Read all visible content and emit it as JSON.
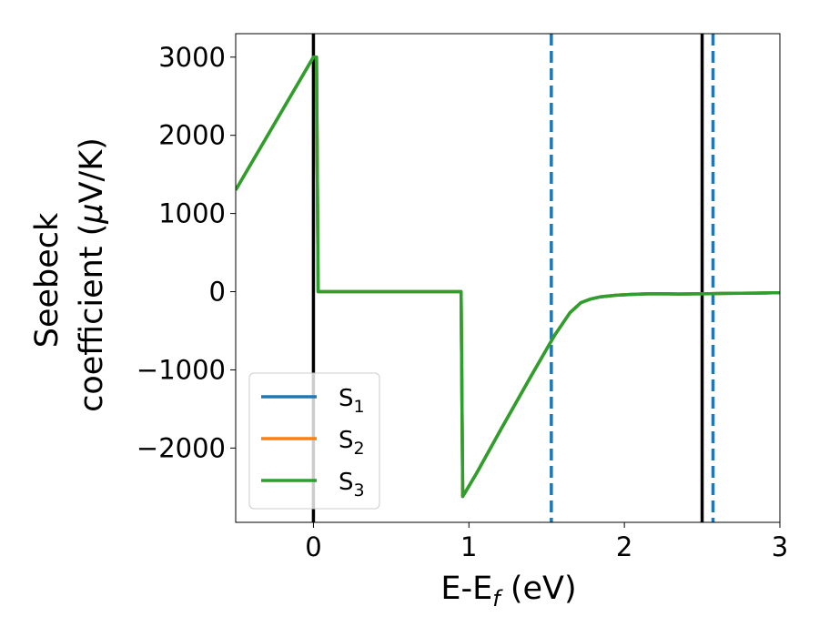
{
  "chart_data": {
    "type": "line",
    "title": "",
    "xlabel": {
      "main": "E-E",
      "sub": "f",
      "unit": " (eV)"
    },
    "ylabel": {
      "line1": "Seebeck",
      "line2_prefix": "coefficient  (",
      "mu": "μ",
      "line2_suffix": "V/K)"
    },
    "xlim": [
      -0.5,
      3.0
    ],
    "ylim": [
      -2950,
      3300
    ],
    "xticks": [
      0,
      1,
      2,
      3
    ],
    "xtick_labels": [
      "0",
      "1",
      "2",
      "3"
    ],
    "yticks": [
      3000,
      2000,
      1000,
      0,
      -1000,
      -2000
    ],
    "ytick_labels": [
      "3000",
      "2000",
      "1000",
      "0",
      "−1000",
      "−2000"
    ],
    "grid": false,
    "legend": {
      "placement": "lower-left",
      "entries": [
        {
          "base": "S",
          "sub": "1",
          "color": "#1f77b4"
        },
        {
          "base": "S",
          "sub": "2",
          "color": "#ff7f0e"
        },
        {
          "base": "S",
          "sub": "3",
          "color": "#2ca02c"
        }
      ]
    },
    "series": [
      {
        "name": "S1",
        "color": "#1f77b4",
        "x": [
          -0.5,
          0.0,
          0.02,
          0.03,
          0.95,
          0.96,
          1.05,
          1.2,
          1.4,
          1.55,
          1.65,
          1.72,
          1.78,
          1.85,
          1.95,
          2.05,
          2.15,
          2.25,
          2.35,
          2.45,
          2.55,
          2.65,
          2.75,
          2.85,
          2.95,
          3.0
        ],
        "y": [
          1300,
          3000,
          3000,
          0,
          0,
          -2620,
          -2320,
          -1780,
          -1080,
          -560,
          -270,
          -140,
          -95,
          -65,
          -45,
          -35,
          -28,
          -25,
          -30,
          -28,
          -25,
          -22,
          -20,
          -18,
          -15,
          -15
        ]
      },
      {
        "name": "S2",
        "color": "#ff7f0e",
        "x": [
          -0.5,
          0.0,
          0.02,
          0.03,
          0.95,
          0.96,
          1.05,
          1.2,
          1.4,
          1.55,
          1.65,
          1.72,
          1.78,
          1.85,
          1.95,
          2.05,
          2.15,
          2.25,
          2.35,
          2.45,
          2.55,
          2.65,
          2.75,
          2.85,
          2.95,
          3.0
        ],
        "y": [
          1300,
          3000,
          3000,
          0,
          0,
          -2620,
          -2320,
          -1780,
          -1080,
          -560,
          -270,
          -140,
          -95,
          -65,
          -45,
          -35,
          -28,
          -25,
          -30,
          -28,
          -25,
          -22,
          -20,
          -18,
          -15,
          -15
        ]
      },
      {
        "name": "S3",
        "color": "#2ca02c",
        "x": [
          -0.5,
          0.0,
          0.02,
          0.03,
          0.95,
          0.96,
          1.05,
          1.2,
          1.4,
          1.55,
          1.65,
          1.72,
          1.78,
          1.85,
          1.95,
          2.05,
          2.15,
          2.25,
          2.35,
          2.45,
          2.55,
          2.65,
          2.75,
          2.85,
          2.95,
          3.0
        ],
        "y": [
          1300,
          3000,
          3000,
          0,
          0,
          -2620,
          -2320,
          -1780,
          -1080,
          -560,
          -270,
          -140,
          -95,
          -65,
          -45,
          -35,
          -28,
          -25,
          -30,
          -28,
          -25,
          -22,
          -20,
          -18,
          -15,
          -15
        ]
      }
    ],
    "reference_lines": [
      {
        "x": 0.0,
        "style": "solid",
        "color": "#000000"
      },
      {
        "x": 2.5,
        "style": "solid",
        "color": "#000000"
      },
      {
        "x": 1.53,
        "style": "dashed",
        "color": "#1f77b4"
      },
      {
        "x": 2.57,
        "style": "dashed",
        "color": "#1f77b4"
      }
    ]
  }
}
